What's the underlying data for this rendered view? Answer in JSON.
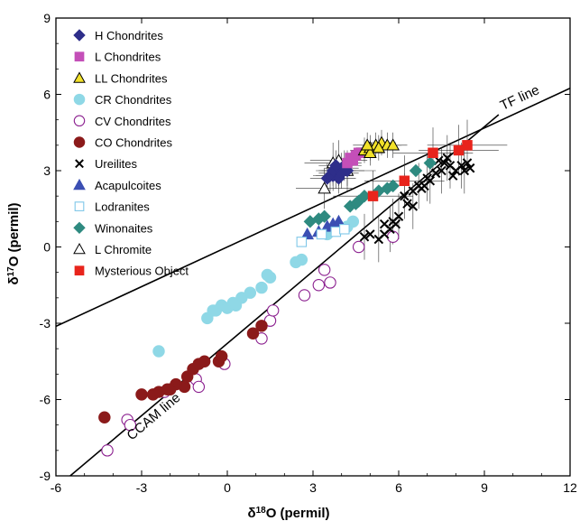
{
  "chart_data": {
    "type": "scatter",
    "title": "",
    "xlabel_main": "δ",
    "xlabel_sup": "18",
    "xlabel_rest": "O (permil)",
    "ylabel_main": "δ",
    "ylabel_sup": "17",
    "ylabel_rest": "O (permil)",
    "xlim": [
      -6,
      12
    ],
    "ylim": [
      -9,
      9
    ],
    "xticks": [
      -6,
      -3,
      0,
      3,
      6,
      9,
      12
    ],
    "yticks": [
      -9,
      -6,
      -3,
      0,
      3,
      6,
      9
    ],
    "legend_position": "top-left",
    "lines": [
      {
        "name": "TF line",
        "x": [
          -6,
          12
        ],
        "y": [
          -3.12,
          6.24
        ]
      },
      {
        "name": "CCAM line",
        "x": [
          -5.5,
          9.5
        ],
        "y": [
          -9,
          5.2
        ]
      }
    ],
    "series": [
      {
        "name": "H Chondrites",
        "marker": "diamond",
        "color": "#2e2e8a",
        "fill": true,
        "points": [
          [
            3.5,
            2.7
          ],
          [
            3.7,
            2.8
          ],
          [
            3.8,
            2.9
          ],
          [
            3.9,
            3.0
          ],
          [
            4.0,
            3.1
          ],
          [
            3.6,
            2.8
          ],
          [
            4.1,
            3.2
          ],
          [
            3.7,
            3.0
          ],
          [
            3.9,
            2.7
          ],
          [
            4.2,
            3.0
          ],
          [
            3.8,
            3.2
          ],
          [
            4.0,
            2.9
          ]
        ]
      },
      {
        "name": "L Chondrites",
        "marker": "square",
        "color": "#c44fb8",
        "fill": true,
        "points": [
          [
            4.3,
            3.5
          ],
          [
            4.5,
            3.6
          ],
          [
            4.4,
            3.4
          ],
          [
            4.6,
            3.7
          ],
          [
            4.2,
            3.3
          ]
        ]
      },
      {
        "name": "LL Chondrites",
        "marker": "triangle",
        "color": "#f2e12a",
        "fill": true,
        "points": [
          [
            4.8,
            3.8
          ],
          [
            5.0,
            3.9
          ],
          [
            5.2,
            4.0
          ],
          [
            5.4,
            4.1
          ],
          [
            5.6,
            4.0
          ],
          [
            5.0,
            3.7
          ],
          [
            5.3,
            3.9
          ],
          [
            5.8,
            4.0
          ],
          [
            4.9,
            4.0
          ]
        ]
      },
      {
        "name": "CR Chondrites",
        "marker": "circle",
        "color": "#8fd8e6",
        "fill": true,
        "points": [
          [
            -2.4,
            -4.1
          ],
          [
            -0.7,
            -2.8
          ],
          [
            -0.4,
            -2.5
          ],
          [
            -0.2,
            -2.3
          ],
          [
            0.0,
            -2.4
          ],
          [
            0.2,
            -2.2
          ],
          [
            0.5,
            -2.0
          ],
          [
            0.8,
            -1.8
          ],
          [
            1.2,
            -1.6
          ],
          [
            1.5,
            -1.2
          ],
          [
            1.4,
            -1.1
          ],
          [
            2.4,
            -0.6
          ],
          [
            2.6,
            -0.5
          ],
          [
            3.5,
            0.5
          ],
          [
            4.2,
            0.8
          ],
          [
            4.4,
            1.0
          ],
          [
            0.3,
            -2.3
          ],
          [
            -0.5,
            -2.5
          ]
        ]
      },
      {
        "name": "CV Chondrites",
        "marker": "circle",
        "color": "#8b1f8f",
        "fill": false,
        "points": [
          [
            -4.2,
            -8.0
          ],
          [
            -3.5,
            -6.8
          ],
          [
            -3.4,
            -7.0
          ],
          [
            -2.2,
            -5.7
          ],
          [
            -1.1,
            -5.2
          ],
          [
            -1.0,
            -5.5
          ],
          [
            -0.1,
            -4.6
          ],
          [
            1.2,
            -3.6
          ],
          [
            1.5,
            -2.9
          ],
          [
            1.6,
            -2.5
          ],
          [
            2.7,
            -1.9
          ],
          [
            3.2,
            -1.5
          ],
          [
            3.6,
            -1.4
          ],
          [
            3.4,
            -0.9
          ],
          [
            4.6,
            0.0
          ],
          [
            5.8,
            0.4
          ]
        ]
      },
      {
        "name": "CO Chondrites",
        "marker": "circle",
        "color": "#8b1a1a",
        "fill": true,
        "points": [
          [
            -4.3,
            -6.7
          ],
          [
            -3.0,
            -5.8
          ],
          [
            -2.6,
            -5.8
          ],
          [
            -2.4,
            -5.7
          ],
          [
            -2.1,
            -5.6
          ],
          [
            -1.8,
            -5.4
          ],
          [
            -1.4,
            -5.1
          ],
          [
            -1.2,
            -4.8
          ],
          [
            -1.0,
            -4.6
          ],
          [
            -0.8,
            -4.5
          ],
          [
            -0.3,
            -4.5
          ],
          [
            -0.2,
            -4.3
          ],
          [
            0.9,
            -3.4
          ],
          [
            1.2,
            -3.1
          ],
          [
            -1.5,
            -5.5
          ],
          [
            -2.0,
            -5.6
          ]
        ]
      },
      {
        "name": "Ureilites",
        "marker": "x",
        "color": "#000000",
        "fill": false,
        "points": [
          [
            4.8,
            0.4
          ],
          [
            5.0,
            0.5
          ],
          [
            5.3,
            0.3
          ],
          [
            5.5,
            0.5
          ],
          [
            5.7,
            0.7
          ],
          [
            5.5,
            0.9
          ],
          [
            5.8,
            1.0
          ],
          [
            5.9,
            0.9
          ],
          [
            6.2,
            2.0
          ],
          [
            6.5,
            2.2
          ],
          [
            6.7,
            2.4
          ],
          [
            6.9,
            2.4
          ],
          [
            7.1,
            2.6
          ],
          [
            7.3,
            2.9
          ],
          [
            7.5,
            3.0
          ],
          [
            7.6,
            3.3
          ],
          [
            7.8,
            3.2
          ],
          [
            8.0,
            3.0
          ],
          [
            8.2,
            3.2
          ],
          [
            8.4,
            3.3
          ],
          [
            8.3,
            3.0
          ],
          [
            7.9,
            2.8
          ],
          [
            7.0,
            2.7
          ],
          [
            6.8,
            2.3
          ],
          [
            6.5,
            1.6
          ],
          [
            6.3,
            1.7
          ],
          [
            6.0,
            1.2
          ],
          [
            7.4,
            3.4
          ],
          [
            7.7,
            3.5
          ],
          [
            8.5,
            3.1
          ]
        ]
      },
      {
        "name": "Acapulcoites",
        "marker": "triangle",
        "color": "#3b4fb3",
        "fill": true,
        "points": [
          [
            2.8,
            0.5
          ],
          [
            3.2,
            0.6
          ],
          [
            3.5,
            0.8
          ],
          [
            3.7,
            0.9
          ],
          [
            3.9,
            1.0
          ]
        ]
      },
      {
        "name": "Lodranites",
        "marker": "square",
        "color": "#7fc7e8",
        "fill": false,
        "points": [
          [
            2.6,
            0.2
          ],
          [
            3.3,
            0.5
          ],
          [
            3.8,
            0.6
          ],
          [
            4.1,
            0.7
          ]
        ]
      },
      {
        "name": "Winonaites",
        "marker": "diamond",
        "color": "#2e8a80",
        "fill": true,
        "points": [
          [
            2.9,
            1.0
          ],
          [
            3.2,
            1.1
          ],
          [
            3.4,
            1.2
          ],
          [
            4.3,
            1.6
          ],
          [
            4.6,
            1.8
          ],
          [
            4.8,
            2.0
          ],
          [
            5.3,
            2.2
          ],
          [
            5.6,
            2.3
          ],
          [
            5.8,
            2.4
          ],
          [
            6.6,
            3.0
          ],
          [
            7.1,
            3.3
          ],
          [
            4.5,
            1.7
          ]
        ]
      },
      {
        "name": "L Chromite",
        "marker": "triangle",
        "color": "#000000",
        "fill": false,
        "points": [
          [
            3.4,
            2.3
          ],
          [
            3.7,
            3.3
          ],
          [
            3.9,
            3.4
          ],
          [
            4.2,
            3.0
          ]
        ]
      },
      {
        "name": "Mysterious Object",
        "marker": "square",
        "color": "#e8241c",
        "fill": true,
        "points": [
          [
            5.1,
            2.0
          ],
          [
            6.2,
            2.6
          ],
          [
            7.2,
            3.7
          ],
          [
            8.1,
            3.8
          ],
          [
            8.4,
            4.0
          ]
        ]
      }
    ]
  }
}
